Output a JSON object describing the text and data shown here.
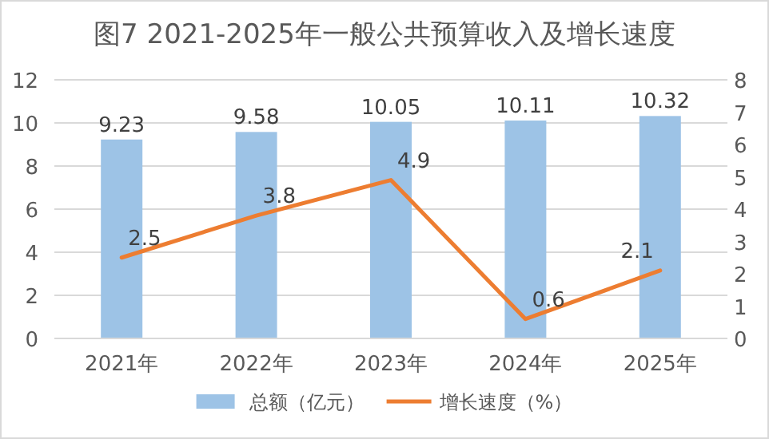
{
  "chart_data": {
    "type": "bar",
    "title": "图7 2021-2025年一般公共预算收入及增长速度",
    "categories": [
      "2021年",
      "2022年",
      "2023年",
      "2024年",
      "2025年"
    ],
    "series": [
      {
        "name": "总额（亿元）",
        "color": "#9dc3e6",
        "values": [
          9.23,
          9.58,
          10.05,
          10.11,
          10.32
        ]
      },
      {
        "name": "增长速度（%）",
        "type": "line",
        "axis": "y2",
        "color": "#ed7d31",
        "values": [
          2.5,
          3.8,
          4.9,
          0.6,
          2.1
        ]
      }
    ],
    "ylim": [
      0,
      12
    ],
    "yticks": [
      0,
      2,
      4,
      6,
      8,
      10,
      12
    ],
    "y2lim": [
      0,
      8
    ],
    "y2ticks": [
      0,
      1,
      2,
      3,
      4,
      5,
      6,
      7,
      8
    ],
    "grid": "y",
    "legend": "bottom",
    "data_labels": true
  }
}
